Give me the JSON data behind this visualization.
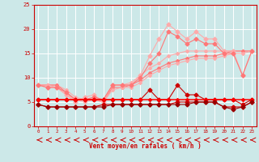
{
  "x": [
    0,
    1,
    2,
    3,
    4,
    5,
    6,
    7,
    8,
    9,
    10,
    11,
    12,
    13,
    14,
    15,
    16,
    17,
    18,
    19,
    20,
    21,
    22,
    23
  ],
  "line_rafales_max": [
    8.5,
    8.0,
    8.0,
    6.5,
    5.0,
    6.0,
    6.5,
    5.0,
    8.5,
    8.5,
    8.5,
    10.5,
    14.5,
    18.0,
    21.0,
    19.5,
    18.0,
    19.5,
    18.0,
    18.0,
    15.5,
    15.5,
    10.5,
    15.5
  ],
  "line_rafales_mean": [
    8.5,
    8.0,
    8.0,
    7.0,
    5.5,
    5.5,
    6.0,
    5.5,
    8.5,
    8.5,
    8.5,
    10.0,
    13.0,
    15.0,
    19.5,
    18.5,
    17.0,
    18.0,
    17.0,
    17.0,
    15.0,
    15.0,
    10.5,
    15.5
  ],
  "line_vent_upper": [
    8.5,
    8.5,
    8.5,
    7.5,
    6.0,
    5.5,
    6.0,
    5.5,
    8.5,
    8.5,
    9.0,
    10.5,
    12.0,
    13.0,
    14.5,
    15.0,
    15.5,
    15.5,
    15.5,
    15.5,
    15.5,
    15.5,
    15.5,
    15.5
  ],
  "line_vent_mid": [
    8.5,
    8.5,
    8.5,
    7.0,
    5.5,
    5.5,
    5.5,
    5.0,
    8.0,
    8.0,
    8.5,
    9.5,
    11.0,
    12.0,
    13.0,
    13.5,
    14.0,
    14.5,
    14.5,
    14.5,
    15.0,
    15.5,
    15.5,
    15.5
  ],
  "line_vent_lower": [
    8.5,
    8.5,
    8.0,
    6.5,
    5.5,
    5.0,
    5.5,
    5.0,
    7.5,
    8.0,
    8.0,
    9.0,
    10.5,
    11.5,
    12.5,
    13.0,
    13.5,
    14.0,
    14.0,
    14.0,
    14.5,
    15.0,
    15.0,
    15.5
  ],
  "line_moyen_high": [
    5.5,
    5.5,
    5.5,
    5.5,
    5.5,
    5.5,
    5.5,
    5.5,
    5.5,
    5.5,
    5.5,
    5.5,
    7.5,
    5.5,
    5.5,
    8.5,
    6.5,
    6.5,
    5.5,
    5.5,
    5.5,
    5.5,
    4.5,
    5.5
  ],
  "line_moyen_flat": [
    5.5,
    5.5,
    5.5,
    5.5,
    5.5,
    5.5,
    5.5,
    5.5,
    5.5,
    5.5,
    5.5,
    5.5,
    5.5,
    5.5,
    5.5,
    5.5,
    5.5,
    5.5,
    5.5,
    5.5,
    5.5,
    5.5,
    5.5,
    5.5
  ],
  "line_moyen_low": [
    4.5,
    4.0,
    4.0,
    4.0,
    4.0,
    4.0,
    4.0,
    4.5,
    4.5,
    4.5,
    4.5,
    4.5,
    4.5,
    4.5,
    4.5,
    5.0,
    5.0,
    5.0,
    5.0,
    5.0,
    4.0,
    4.0,
    4.0,
    5.0
  ],
  "line_moyen_bottom": [
    4.5,
    4.0,
    4.0,
    4.0,
    4.0,
    4.0,
    4.0,
    4.0,
    4.5,
    4.5,
    4.5,
    4.5,
    4.5,
    4.5,
    4.5,
    4.5,
    4.5,
    5.0,
    5.0,
    5.0,
    4.0,
    3.5,
    4.0,
    5.0
  ],
  "xlabel": "Vent moyen/en rafales ( km/h )",
  "ylim": [
    0,
    25
  ],
  "xlim": [
    -0.5,
    23.5
  ],
  "bg_color": "#cce8e8",
  "grid_color": "#ffffff",
  "color_pink_light": "#ffaaaa",
  "color_pink_mid": "#ff7777",
  "color_red_dark": "#cc0000",
  "color_red_bright": "#ff0000",
  "color_red_deeper": "#990000"
}
